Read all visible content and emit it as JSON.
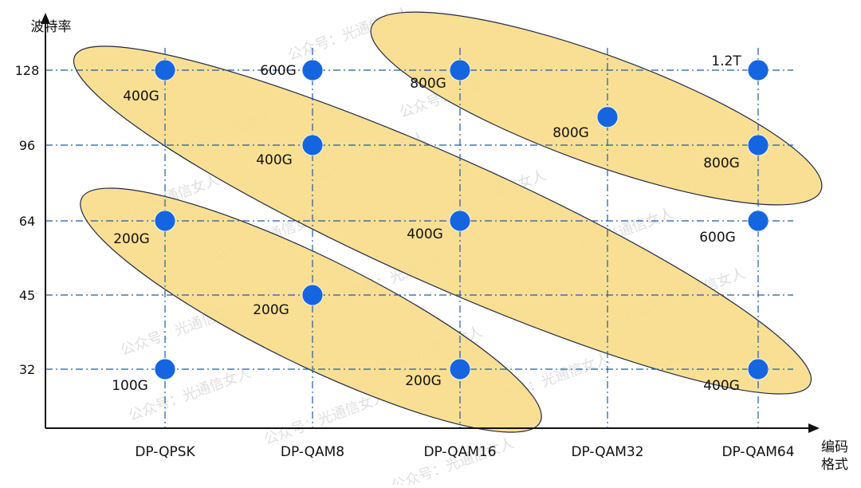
{
  "chart_data": {
    "type": "scatter",
    "title": "",
    "ylabel": "波特率",
    "xlabel_line1": "编码",
    "xlabel_line2": "格式",
    "categories": [
      "DP-QPSK",
      "DP-QAM8",
      "DP-QAM16",
      "DP-QAM32",
      "DP-QAM64"
    ],
    "y_ticks": [
      "32",
      "45",
      "64",
      "96",
      "128"
    ],
    "grid": true,
    "points": [
      {
        "x": "DP-QPSK",
        "y": 128,
        "label": "400G"
      },
      {
        "x": "DP-QPSK",
        "y": 64,
        "label": "200G"
      },
      {
        "x": "DP-QPSK",
        "y": 32,
        "label": "100G"
      },
      {
        "x": "DP-QAM8",
        "y": 128,
        "label": "600G"
      },
      {
        "x": "DP-QAM8",
        "y": 96,
        "label": "400G"
      },
      {
        "x": "DP-QAM8",
        "y": 45,
        "label": "200G"
      },
      {
        "x": "DP-QAM16",
        "y": 128,
        "label": "800G"
      },
      {
        "x": "DP-QAM16",
        "y": 64,
        "label": "400G"
      },
      {
        "x": "DP-QAM16",
        "y": 32,
        "label": "200G"
      },
      {
        "x": "DP-QAM32",
        "y": 108,
        "label": "800G"
      },
      {
        "x": "DP-QAM64",
        "y": 128,
        "label": "1.2T"
      },
      {
        "x": "DP-QAM64",
        "y": 96,
        "label": "800G"
      },
      {
        "x": "DP-QAM64",
        "y": 64,
        "label": "600G"
      },
      {
        "x": "DP-QAM64",
        "y": 32,
        "label": "400G"
      }
    ],
    "groups": [
      {
        "name": "800G",
        "members": [
          "DP-QAM16 128",
          "DP-QAM32 108",
          "DP-QAM64 96"
        ]
      },
      {
        "name": "400G",
        "members": [
          "DP-QPSK 128",
          "DP-QAM8 96",
          "DP-QAM16 64",
          "DP-QAM64 32"
        ]
      },
      {
        "name": "200G",
        "members": [
          "DP-QPSK 64",
          "DP-QAM8 45",
          "DP-QAM16 32"
        ]
      }
    ],
    "colors": {
      "point": "#1565e0",
      "ellipse_fill": "#f8dc8a",
      "ellipse_stroke": "#1f2a44",
      "grid": "#1f5aa6",
      "axis": "#111111"
    }
  },
  "watermark_text": "公众号：光通信女人"
}
